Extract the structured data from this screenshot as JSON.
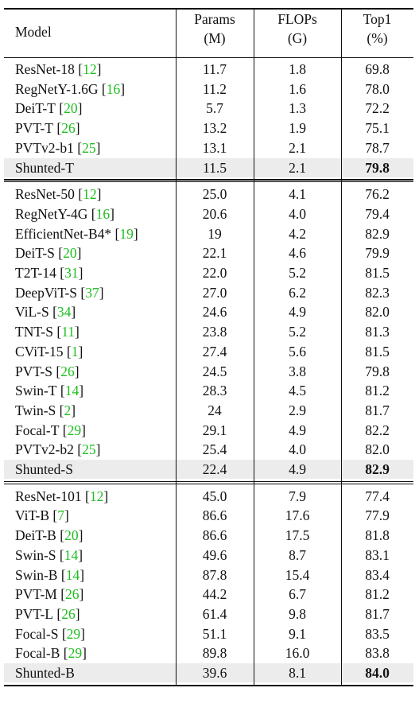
{
  "table": {
    "header": {
      "model": "Model",
      "params": [
        "Params",
        "(M)"
      ],
      "flops": [
        "FLOPs",
        "(G)"
      ],
      "top1": [
        "Top1",
        "(%)"
      ]
    },
    "groups": [
      {
        "rows": [
          {
            "model": "ResNet-18",
            "ref": "12",
            "params": "11.7",
            "flops": "1.8",
            "top1": "69.8"
          },
          {
            "model": "RegNetY-1.6G",
            "ref": "16",
            "params": "11.2",
            "flops": "1.6",
            "top1": "78.0"
          },
          {
            "model": "DeiT-T",
            "ref": "20",
            "params": "5.7",
            "flops": "1.3",
            "top1": "72.2"
          },
          {
            "model": "PVT-T",
            "ref": "26",
            "params": "13.2",
            "flops": "1.9",
            "top1": "75.1"
          },
          {
            "model": "PVTv2-b1",
            "ref": "25",
            "params": "13.1",
            "flops": "2.1",
            "top1": "78.7"
          },
          {
            "model": "Shunted-T",
            "ref": "",
            "params": "11.5",
            "flops": "2.1",
            "top1": "79.8",
            "highlight": true
          }
        ]
      },
      {
        "rows": [
          {
            "model": "ResNet-50",
            "ref": "12",
            "params": "25.0",
            "flops": "4.1",
            "top1": "76.2"
          },
          {
            "model": "RegNetY-4G",
            "ref": "16",
            "params": "20.6",
            "flops": "4.0",
            "top1": "79.4"
          },
          {
            "model": "EfficientNet-B4*",
            "ref": "19",
            "params": "19",
            "flops": "4.2",
            "top1": "82.9"
          },
          {
            "model": "DeiT-S",
            "ref": "20",
            "params": "22.1",
            "flops": "4.6",
            "top1": "79.9"
          },
          {
            "model": "T2T-14",
            "ref": "31",
            "params": "22.0",
            "flops": "5.2",
            "top1": "81.5"
          },
          {
            "model": "DeepViT-S",
            "ref": "37",
            "params": "27.0",
            "flops": "6.2",
            "top1": "82.3"
          },
          {
            "model": "ViL-S",
            "ref": "34",
            "params": "24.6",
            "flops": "4.9",
            "top1": "82.0"
          },
          {
            "model": "TNT-S",
            "ref": "11",
            "params": "23.8",
            "flops": "5.2",
            "top1": "81.3"
          },
          {
            "model": "CViT-15",
            "ref": "1",
            "params": "27.4",
            "flops": "5.6",
            "top1": "81.5"
          },
          {
            "model": "PVT-S",
            "ref": "26",
            "params": "24.5",
            "flops": "3.8",
            "top1": "79.8"
          },
          {
            "model": "Swin-T",
            "ref": "14",
            "params": "28.3",
            "flops": "4.5",
            "top1": "81.2"
          },
          {
            "model": "Twin-S",
            "ref": "2",
            "params": "24",
            "flops": "2.9",
            "top1": "81.7"
          },
          {
            "model": "Focal-T",
            "ref": "29",
            "params": "29.1",
            "flops": "4.9",
            "top1": "82.2"
          },
          {
            "model": "PVTv2-b2",
            "ref": "25",
            "params": "25.4",
            "flops": "4.0",
            "top1": "82.0"
          },
          {
            "model": "Shunted-S",
            "ref": "",
            "params": "22.4",
            "flops": "4.9",
            "top1": "82.9",
            "highlight": true
          }
        ]
      },
      {
        "rows": [
          {
            "model": "ResNet-101",
            "ref": "12",
            "params": "45.0",
            "flops": "7.9",
            "top1": "77.4"
          },
          {
            "model": "ViT-B",
            "ref": "7",
            "params": "86.6",
            "flops": "17.6",
            "top1": "77.9"
          },
          {
            "model": "DeiT-B",
            "ref": "20",
            "params": "86.6",
            "flops": "17.5",
            "top1": "81.8"
          },
          {
            "model": "Swin-S",
            "ref": "14",
            "params": "49.6",
            "flops": "8.7",
            "top1": "83.1"
          },
          {
            "model": "Swin-B",
            "ref": "14",
            "params": "87.8",
            "flops": "15.4",
            "top1": "83.4"
          },
          {
            "model": "PVT-M",
            "ref": "26",
            "params": "44.2",
            "flops": "6.7",
            "top1": "81.2"
          },
          {
            "model": "PVT-L",
            "ref": "26",
            "params": "61.4",
            "flops": "9.8",
            "top1": "81.7"
          },
          {
            "model": "Focal-S",
            "ref": "29",
            "params": "51.1",
            "flops": "9.1",
            "top1": "83.5"
          },
          {
            "model": "Focal-B",
            "ref": "29",
            "params": "89.8",
            "flops": "16.0",
            "top1": "83.8"
          },
          {
            "model": "Shunted-B",
            "ref": "",
            "params": "39.6",
            "flops": "8.1",
            "top1": "84.0",
            "highlight": true
          }
        ]
      }
    ],
    "colors": {
      "text": "#111111",
      "ref": "#1fbf1f",
      "highlight": "#ececec"
    }
  }
}
